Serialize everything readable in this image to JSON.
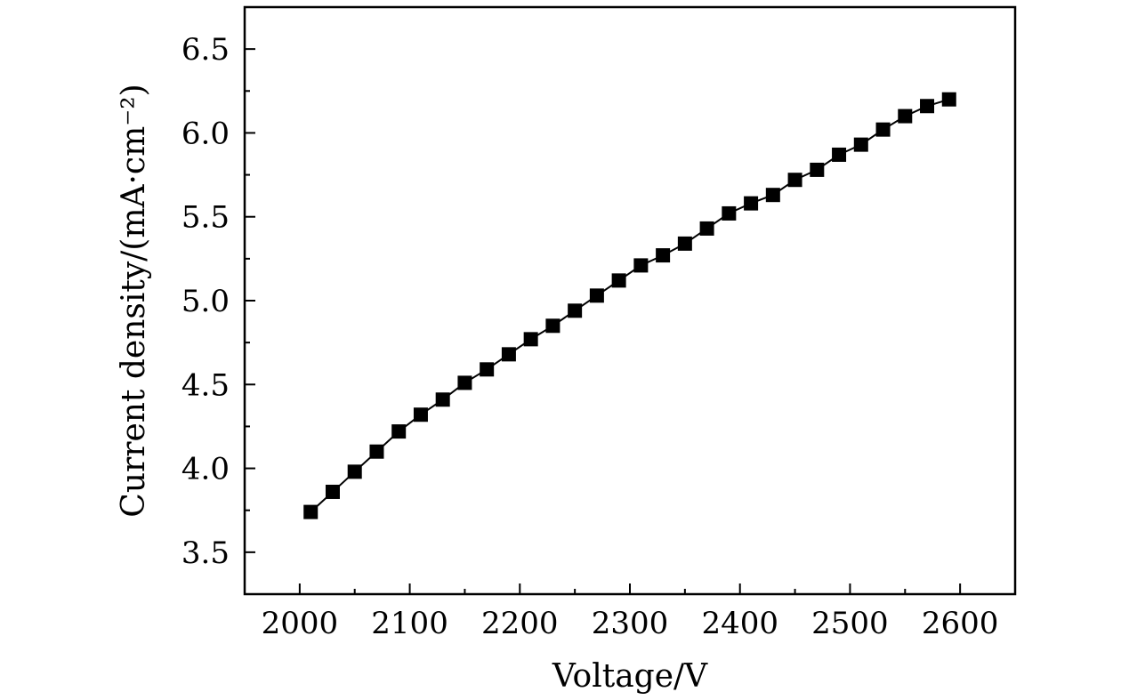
{
  "chart_data": {
    "type": "line",
    "xlabel": "Voltage/V",
    "ylabel": "Current density/(mA·cm⁻²)",
    "xlim": [
      1950,
      2650
    ],
    "ylim": [
      3.25,
      6.75
    ],
    "x_ticks": [
      2000,
      2100,
      2200,
      2300,
      2400,
      2500,
      2600
    ],
    "y_ticks": [
      "3.5",
      "4.0",
      "4.5",
      "5.0",
      "5.5",
      "6.0",
      "6.5"
    ],
    "grid": false,
    "marker": "square",
    "series": [
      {
        "color": "#000000",
        "x": [
          2010,
          2030,
          2050,
          2070,
          2090,
          2110,
          2130,
          2150,
          2170,
          2190,
          2210,
          2230,
          2250,
          2270,
          2290,
          2310,
          2330,
          2350,
          2370,
          2390,
          2410,
          2430,
          2450,
          2470,
          2490,
          2510,
          2530,
          2550,
          2570,
          2590
        ],
        "y": [
          3.74,
          3.86,
          3.98,
          4.1,
          4.22,
          4.32,
          4.41,
          4.51,
          4.59,
          4.68,
          4.77,
          4.85,
          4.94,
          5.03,
          5.12,
          5.21,
          5.27,
          5.34,
          5.43,
          5.52,
          5.58,
          5.63,
          5.72,
          5.78,
          5.87,
          5.93,
          6.02,
          6.1,
          6.16,
          6.2
        ]
      }
    ]
  }
}
